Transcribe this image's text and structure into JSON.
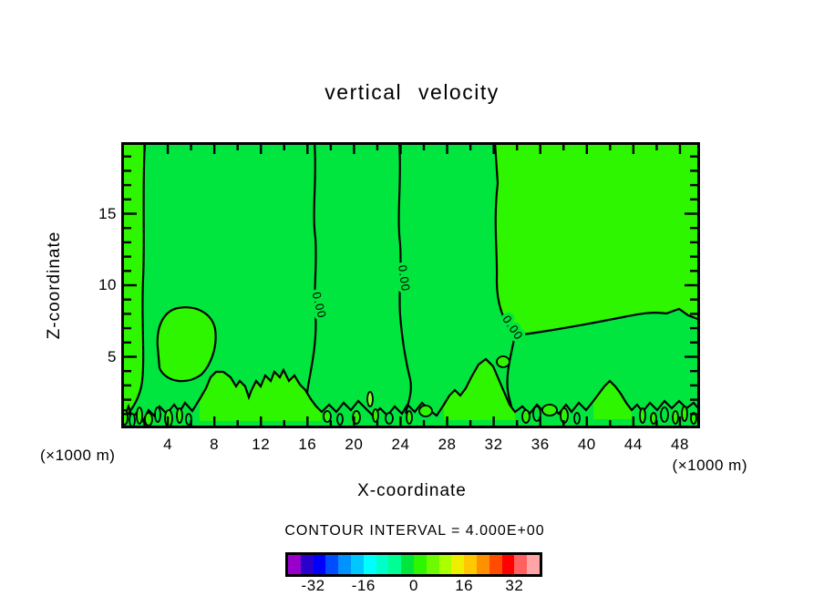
{
  "title": "vertical velocity",
  "axes": {
    "x_label": "X-coordinate",
    "y_label": "Z-coordinate",
    "unit_left": "(×1000 m)",
    "unit_right": "(×1000 m)",
    "x_tick_labels": [
      "4",
      "8",
      "12",
      "16",
      "20",
      "24",
      "28",
      "32",
      "36",
      "40",
      "44",
      "48"
    ],
    "y_tick_labels": [
      "15",
      "10",
      "5"
    ]
  },
  "contour": {
    "line_label": "0.00",
    "interval_text": "CONTOUR INTERVAL = 4.000E+00"
  },
  "colorbar": {
    "tick_labels": [
      "-32",
      "-16",
      "0",
      "16",
      "32"
    ],
    "cell_colors": [
      "#9900CC",
      "#2A00CC",
      "#0000FF",
      "#004CFF",
      "#0092FF",
      "#00C8FF",
      "#00FFFF",
      "#00FFC8",
      "#00FF92",
      "#00E63C",
      "#2EF500",
      "#6EFA00",
      "#AAFF00",
      "#EEEE00",
      "#FFC800",
      "#FF9100",
      "#FF4C00",
      "#FF0000",
      "#FF6161",
      "#FFA5A5"
    ]
  },
  "colors": {
    "field_negative_band": "#00E63E",
    "field_positive_band": "#2EF500",
    "contour_line": "#000000",
    "page_background": "#FFFFFF"
  },
  "chart_data": {
    "type": "heatmap",
    "subtype": "filled-contour",
    "title": "vertical velocity",
    "xlabel": "X-coordinate (×1000 m)",
    "ylabel": "Z-coordinate (×1000 m)",
    "x_range": [
      0,
      50
    ],
    "y_range": [
      0,
      20
    ],
    "x_ticks": [
      4,
      8,
      12,
      16,
      20,
      24,
      28,
      32,
      36,
      40,
      44,
      48
    ],
    "y_ticks": [
      5,
      10,
      15
    ],
    "contour_interval": 4.0,
    "contour_levels_visible": [
      0.0
    ],
    "value_bands_visible": [
      [
        -4,
        0
      ],
      [
        0,
        4
      ]
    ],
    "colorbar_range": [
      -40,
      40
    ],
    "colorbar_step": 4,
    "colorbar_tick_values": [
      -32,
      -16,
      0,
      16,
      32
    ],
    "legend_position": "bottom",
    "grid": false
  }
}
